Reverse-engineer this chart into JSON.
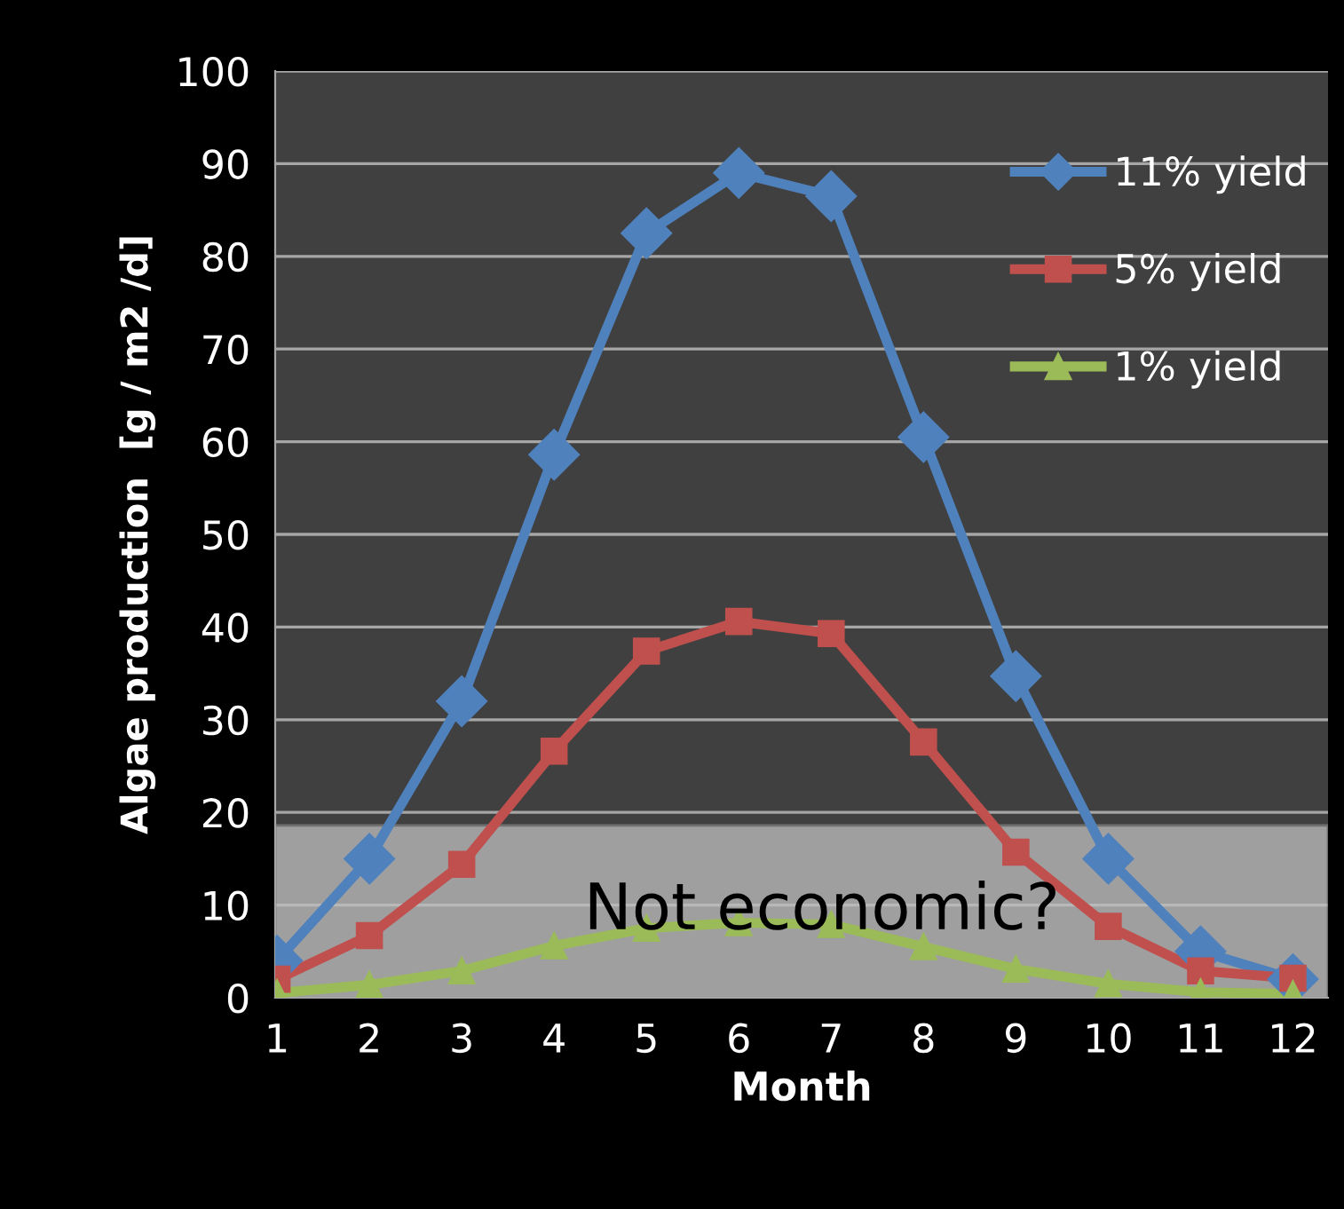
{
  "chart_data": {
    "type": "line",
    "xlabel": "Month",
    "ylabel": "Algae production  [g / m2 /d]",
    "categories": [
      "1",
      "2",
      "3",
      "4",
      "5",
      "6",
      "7",
      "8",
      "9",
      "10",
      "11",
      "12"
    ],
    "series": [
      {
        "name": "11% yield",
        "color": "#4f81bd",
        "marker": "diamond",
        "values": [
          4,
          15,
          32,
          58.6,
          82.5,
          89,
          86.5,
          60.5,
          34.7,
          15,
          5,
          2
        ]
      },
      {
        "name": "5% yield",
        "color": "#c0504d",
        "marker": "square",
        "values": [
          2,
          6.7,
          14.4,
          26.6,
          37.4,
          40.6,
          39.3,
          27.6,
          15.7,
          7.7,
          2.9,
          2.1
        ]
      },
      {
        "name": "1% yield",
        "color": "#9bbb59",
        "marker": "triangle",
        "values": [
          0.5,
          1.4,
          2.9,
          5.6,
          7.5,
          8.1,
          7.9,
          5.5,
          3.1,
          1.5,
          0.6,
          0.4
        ]
      }
    ],
    "ylim": [
      0,
      100
    ],
    "yticks": [
      0,
      10,
      20,
      30,
      40,
      50,
      60,
      70,
      80,
      90,
      100
    ],
    "grid": "y",
    "legend": "top right",
    "bands": [
      {
        "axis": "y",
        "from": 0,
        "to": 18.6,
        "label": "Not economic?",
        "color": "#bfbfbf"
      }
    ]
  }
}
